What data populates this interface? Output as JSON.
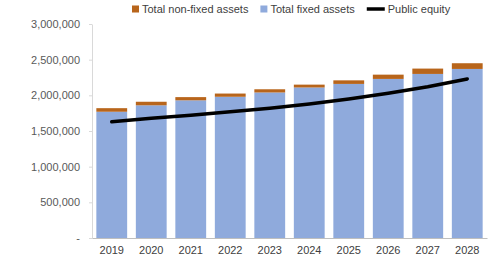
{
  "chart_data": {
    "type": "bar",
    "stacked": true,
    "grid": false,
    "legend": "top",
    "categories": [
      "2019",
      "2020",
      "2021",
      "2022",
      "2023",
      "2024",
      "2025",
      "2026",
      "2027",
      "2028"
    ],
    "series": [
      {
        "name": "Total non-fixed assets",
        "type": "bar",
        "color": "#b8651b",
        "values": [
          50000,
          50000,
          45000,
          45000,
          45000,
          40000,
          50000,
          60000,
          75000,
          80000
        ]
      },
      {
        "name": "Total fixed assets",
        "type": "bar",
        "color": "#8faadc",
        "values": [
          1770000,
          1860000,
          1930000,
          1980000,
          2040000,
          2110000,
          2160000,
          2230000,
          2300000,
          2370000
        ]
      },
      {
        "name": "Public equity",
        "type": "line",
        "color": "#000000",
        "values": [
          1630000,
          1680000,
          1720000,
          1770000,
          1820000,
          1880000,
          1950000,
          2030000,
          2120000,
          2230000
        ]
      }
    ],
    "ylim": [
      0,
      3000000
    ],
    "yticks": [
      {
        "value": 0,
        "label": "-"
      },
      {
        "value": 500000,
        "label": "500,000"
      },
      {
        "value": 1000000,
        "label": "1,000,000"
      },
      {
        "value": 1500000,
        "label": "1,500,000"
      },
      {
        "value": 2000000,
        "label": "2,000,000"
      },
      {
        "value": 2500000,
        "label": "2,500,000"
      },
      {
        "value": 3000000,
        "label": "3,000,000"
      }
    ]
  }
}
